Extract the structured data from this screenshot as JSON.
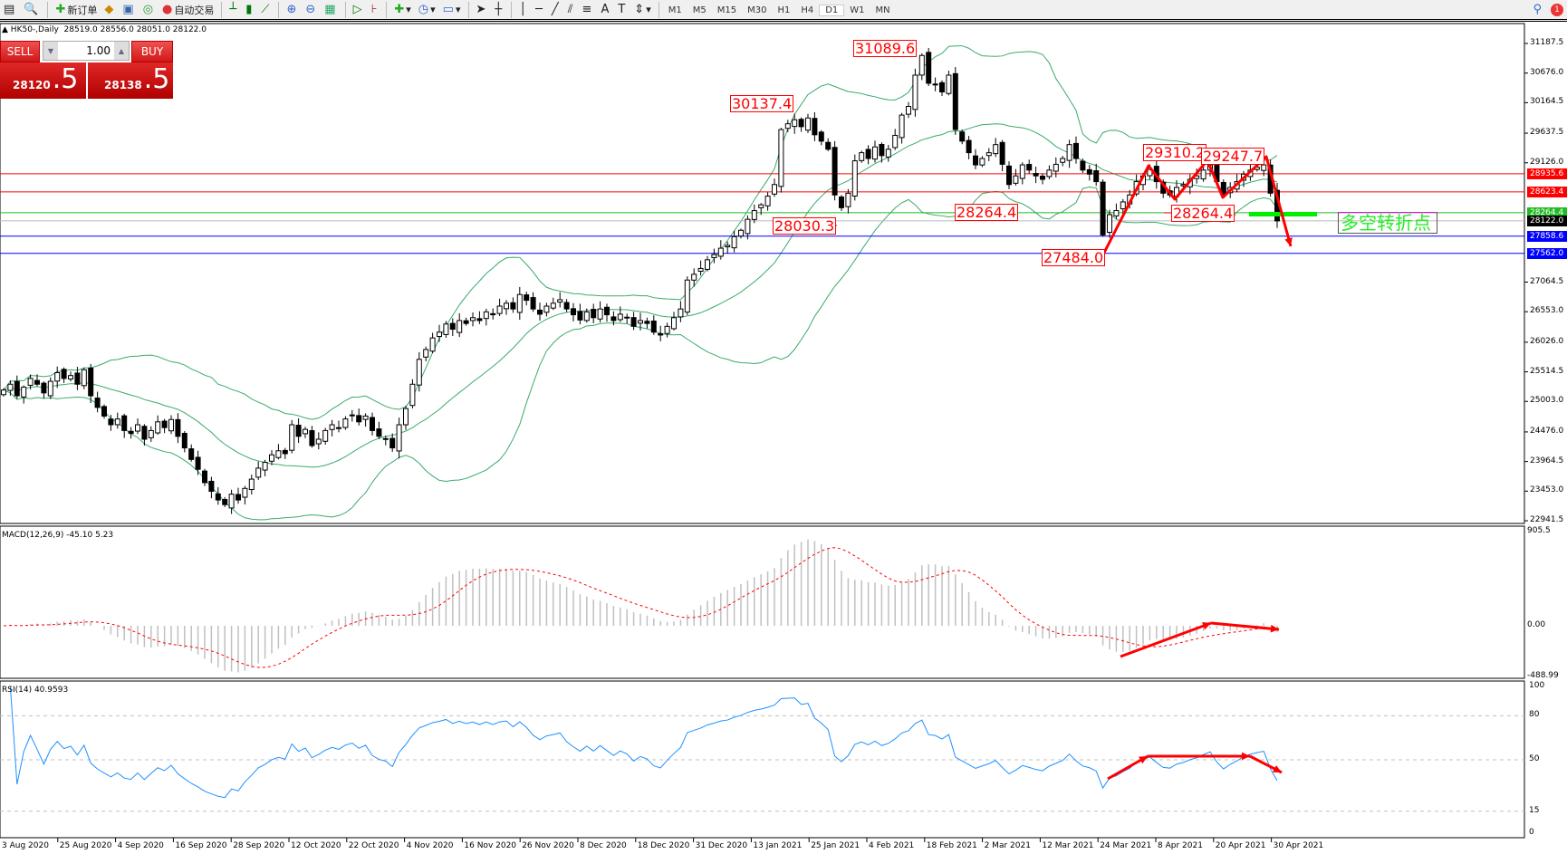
{
  "toolbar": {
    "new_order": "新订单",
    "auto_trading": "自动交易",
    "timeframes": [
      "M1",
      "M5",
      "M15",
      "M30",
      "H1",
      "H4",
      "D1",
      "W1",
      "MN"
    ],
    "active_timeframe": "D1",
    "notification_count": "1"
  },
  "chart": {
    "title": "HK50-,Daily",
    "ohlc": "28519.0 28556.0 28051.0 28122.0"
  },
  "trade_panel": {
    "sell_label": "SELL",
    "buy_label": "BUY",
    "lot": "1.00",
    "sell_price_main": "28120",
    "sell_price_big": ".5",
    "buy_price_main": "28138",
    "buy_price_big": ".5"
  },
  "price_axis": {
    "ticks": [
      "31187.5",
      "30676.0",
      "30164.5",
      "29637.5",
      "29126.0",
      "28935.6",
      "28623.4",
      "28264.4",
      "28122.0",
      "27858.6",
      "27562.0",
      "27064.5",
      "26553.0",
      "26026.0",
      "25514.5",
      "25003.0",
      "24476.0",
      "23964.5",
      "23453.0",
      "22941.5"
    ],
    "range": [
      22941.5,
      31187.5
    ]
  },
  "levels": [
    {
      "price": "28935.6",
      "color": "#ff0000"
    },
    {
      "price": "28623.4",
      "color": "#ff0000"
    },
    {
      "price": "28264.4",
      "color": "#22bb22"
    },
    {
      "price": "28122.0",
      "color": "#000000",
      "line": "#bbbbbb"
    },
    {
      "price": "27858.6",
      "color": "#0000ff"
    },
    {
      "price": "27562.0",
      "color": "#0000ff"
    }
  ],
  "annotations": [
    "31089.6",
    "30137.4",
    "28030.3",
    "28264.4",
    "27484.0",
    "29310.2",
    "29247.7",
    "28264.4"
  ],
  "note": "多空转折点",
  "macd": {
    "label": "MACD(12,26,9) -45.10 5.23",
    "ticks": [
      "905.5",
      "0.00",
      "-488.99"
    ]
  },
  "rsi": {
    "label": "RSI(14) 40.9593",
    "ticks": [
      "100",
      "80",
      "50",
      "15",
      "0"
    ]
  },
  "time_axis": [
    "3 Aug 2020",
    "25 Aug 2020",
    "4 Sep 2020",
    "16 Sep 2020",
    "28 Sep 2020",
    "12 Oct 2020",
    "22 Oct 2020",
    "4 Nov 2020",
    "16 Nov 2020",
    "26 Nov 2020",
    "8 Dec 2020",
    "18 Dec 2020",
    "31 Dec 2020",
    "13 Jan 2021",
    "25 Jan 2021",
    "4 Feb 2021",
    "18 Feb 2021",
    "2 Mar 2021",
    "12 Mar 2021",
    "24 Mar 2021",
    "8 Apr 2021",
    "20 Apr 2021",
    "30 Apr 2021"
  ],
  "colors": {
    "bollinger": "#3aaa6a",
    "macd_hist": "#c0c0c0",
    "macd_signal": "#ff0000",
    "rsi": "#1e90ff",
    "arrows": "#ff0000",
    "bull": "#ffffff",
    "bear": "#000000"
  },
  "chart_data": {
    "type": "candlestick",
    "indicators": [
      "Bollinger Bands(20,2)",
      "MACD(12,26,9)",
      "RSI(14)"
    ],
    "closes": [
      25200,
      25300,
      25100,
      25250,
      25400,
      25300,
      25150,
      25350,
      25500,
      25400,
      25450,
      25300,
      25550,
      25100,
      24900,
      24750,
      24600,
      24700,
      24500,
      24450,
      24600,
      24350,
      24500,
      24650,
      24550,
      24690,
      24400,
      24200,
      24000,
      23830,
      23600,
      23450,
      23300,
      23220,
      23400,
      23300,
      23500,
      23660,
      23850,
      23950,
      24080,
      24150,
      24100,
      24600,
      24400,
      24520,
      24240,
      24350,
      24500,
      24600,
      24550,
      24700,
      24770,
      24650,
      24750,
      24500,
      24400,
      24350,
      24200,
      24600,
      24880,
      25300,
      25730,
      25900,
      26100,
      26200,
      26340,
      26250,
      26400,
      26350,
      26450,
      26400,
      26550,
      26500,
      26650,
      26700,
      26600,
      26850,
      26750,
      26600,
      26510,
      26650,
      26700,
      26760,
      26600,
      26500,
      26410,
      26550,
      26450,
      26600,
      26500,
      26400,
      26510,
      26450,
      26300,
      26400,
      26350,
      26200,
      26150,
      26300,
      26450,
      26600,
      27100,
      27200,
      27300,
      27450,
      27540,
      27650,
      27700,
      27850,
      27960,
      28150,
      28300,
      28400,
      28550,
      28750,
      29700,
      29800,
      29870,
      29750,
      29900,
      29610,
      29500,
      29360,
      28570,
      28350,
      28600,
      29160,
      29300,
      29200,
      29400,
      29250,
      29360,
      29600,
      29950,
      30100,
      30640,
      30980,
      30500,
      30470,
      30350,
      30640,
      29700,
      29500,
      29300,
      29090,
      29200,
      29300,
      29440,
      29100,
      28750,
      28900,
      29090,
      29000,
      28900,
      28840,
      29000,
      29100,
      29200,
      29440,
      29200,
      29000,
      28930,
      28800,
      27880,
      28230,
      28300,
      28450,
      28570,
      28800,
      28900,
      29010,
      28800,
      28600,
      28570,
      28700,
      28750,
      28840,
      28900,
      29000,
      29090,
      28800,
      28570,
      28700,
      28800,
      28930,
      29000,
      29050,
      29090,
      28600,
      28122
    ]
  }
}
